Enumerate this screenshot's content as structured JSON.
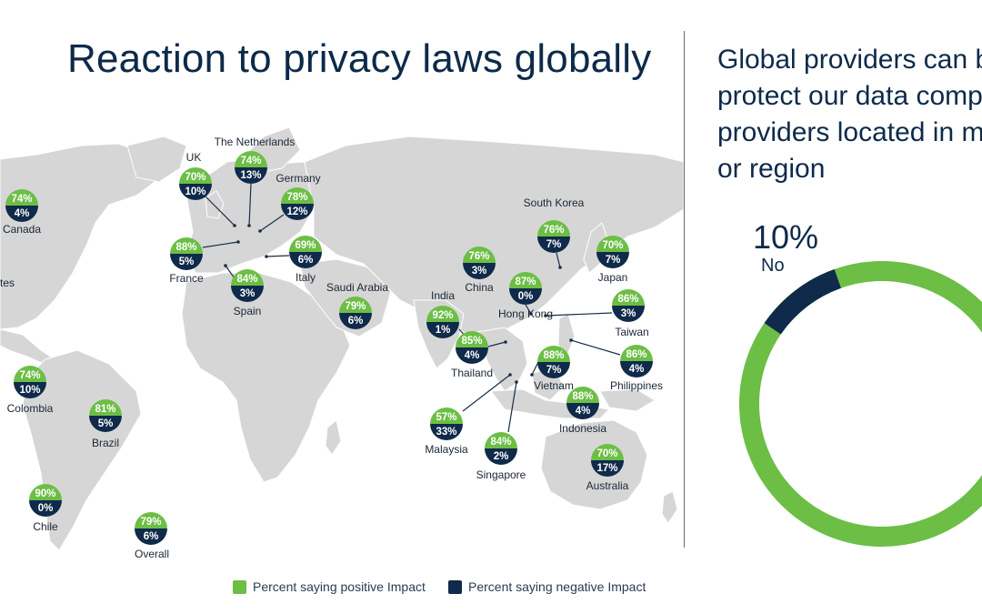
{
  "title": "Reaction to privacy laws globally",
  "right_panel": {
    "lines": [
      "Global providers can b",
      "protect our data comp",
      "providers located in m",
      "or region"
    ],
    "donut": {
      "no_percent": "10%",
      "no_label": "No",
      "no_value": 10
    }
  },
  "legend": {
    "positive": "Percent saying positive Impact",
    "negative": "Percent saying negative Impact"
  },
  "colors": {
    "positive": "#6cbe45",
    "negative": "#0f2a4a",
    "map": "#d6d6d6",
    "line": "#1a2e4a"
  },
  "chart_data": {
    "type": "map",
    "title": "Reaction to privacy laws globally",
    "series": [
      {
        "name": "Percent saying positive Impact",
        "color": "#6cbe45"
      },
      {
        "name": "Percent saying negative Impact",
        "color": "#0f2a4a"
      }
    ],
    "countries": [
      {
        "name": "Canada",
        "positive": 74,
        "negative": 4,
        "pos_label": "74%",
        "neg_label": "4%"
      },
      {
        "name": "tes",
        "positive": null,
        "negative": null,
        "pos_label": "",
        "neg_label": ""
      },
      {
        "name": "UK",
        "positive": 70,
        "negative": 10,
        "pos_label": "70%",
        "neg_label": "10%"
      },
      {
        "name": "The Netherlands",
        "positive": 74,
        "negative": 13,
        "pos_label": "74%",
        "neg_label": "13%"
      },
      {
        "name": "Germany",
        "positive": 78,
        "negative": 12,
        "pos_label": "78%",
        "neg_label": "12%"
      },
      {
        "name": "France",
        "positive": 88,
        "negative": 5,
        "pos_label": "88%",
        "neg_label": "5%"
      },
      {
        "name": "Italy",
        "positive": 69,
        "negative": 6,
        "pos_label": "69%",
        "neg_label": "6%"
      },
      {
        "name": "Spain",
        "positive": 84,
        "negative": 3,
        "pos_label": "84%",
        "neg_label": "3%"
      },
      {
        "name": "Saudi Arabia",
        "positive": 79,
        "negative": 6,
        "pos_label": "79%",
        "neg_label": "6%"
      },
      {
        "name": "India",
        "positive": 92,
        "negative": 1,
        "pos_label": "92%",
        "neg_label": "1%"
      },
      {
        "name": "China",
        "positive": 76,
        "negative": 3,
        "pos_label": "76%",
        "neg_label": "3%"
      },
      {
        "name": "Hong Kong",
        "positive": 87,
        "negative": 0,
        "pos_label": "87%",
        "neg_label": "0%"
      },
      {
        "name": "South Korea",
        "positive": 76,
        "negative": 7,
        "pos_label": "76%",
        "neg_label": "7%"
      },
      {
        "name": "Japan",
        "positive": 70,
        "negative": 7,
        "pos_label": "70%",
        "neg_label": "7%"
      },
      {
        "name": "Taiwan",
        "positive": 86,
        "negative": 3,
        "pos_label": "86%",
        "neg_label": "3%"
      },
      {
        "name": "Philippines",
        "positive": 86,
        "negative": 4,
        "pos_label": "86%",
        "neg_label": "4%"
      },
      {
        "name": "Thailand",
        "positive": 85,
        "negative": 4,
        "pos_label": "85%",
        "neg_label": "4%"
      },
      {
        "name": "Vietnam",
        "positive": 88,
        "negative": 7,
        "pos_label": "88%",
        "neg_label": "7%"
      },
      {
        "name": "Indonesia",
        "positive": 88,
        "negative": 4,
        "pos_label": "88%",
        "neg_label": "4%"
      },
      {
        "name": "Malaysia",
        "positive": 57,
        "negative": 33,
        "pos_label": "57%",
        "neg_label": "33%"
      },
      {
        "name": "Singapore",
        "positive": 84,
        "negative": 2,
        "pos_label": "84%",
        "neg_label": "2%"
      },
      {
        "name": "Australia",
        "positive": 70,
        "negative": 17,
        "pos_label": "70%",
        "neg_label": "17%"
      },
      {
        "name": "Colombia",
        "positive": 74,
        "negative": 10,
        "pos_label": "74%",
        "neg_label": "10%"
      },
      {
        "name": "Brazil",
        "positive": 81,
        "negative": 5,
        "pos_label": "81%",
        "neg_label": "5%"
      },
      {
        "name": "Chile",
        "positive": 90,
        "negative": 0,
        "pos_label": "90%",
        "neg_label": "0%"
      },
      {
        "name": "Overall",
        "positive": 79,
        "negative": 6,
        "pos_label": "79%",
        "neg_label": "6%"
      }
    ]
  }
}
